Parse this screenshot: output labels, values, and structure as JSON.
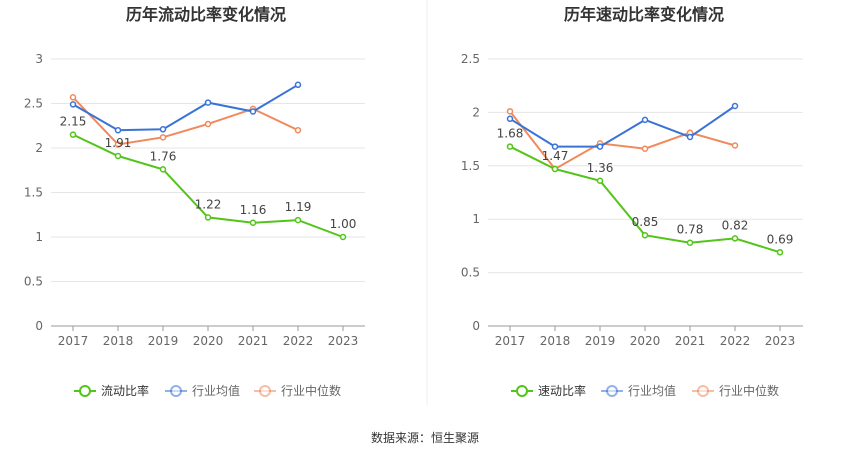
{
  "source_label": "数据来源：恒生聚源",
  "chart_data": [
    {
      "type": "line",
      "title": "历年流动比率变化情况",
      "categories": [
        "2017",
        "2018",
        "2019",
        "2020",
        "2021",
        "2022",
        "2023"
      ],
      "ylim": [
        0,
        3
      ],
      "yticks": [
        "0",
        "0.5",
        "1",
        "1.5",
        "2",
        "2.5",
        "3"
      ],
      "grid": true,
      "legend": "bottom",
      "series": [
        {
          "name": "流动比率",
          "color": "#52c41a",
          "labeled": true,
          "values": [
            2.15,
            1.91,
            1.76,
            1.22,
            1.16,
            1.19,
            1.0
          ],
          "labels": [
            "2.15",
            "1.91",
            "1.76",
            "1.22",
            "1.16",
            "1.19",
            "1.00"
          ]
        },
        {
          "name": "行业均值",
          "color": "#3a73d6",
          "labeled": false,
          "values": [
            2.49,
            2.2,
            2.21,
            2.51,
            2.41,
            2.71,
            null
          ]
        },
        {
          "name": "行业中位数",
          "color": "#f08a5d",
          "labeled": false,
          "values": [
            2.57,
            2.04,
            2.12,
            2.27,
            2.44,
            2.2,
            null
          ]
        }
      ]
    },
    {
      "type": "line",
      "title": "历年速动比率变化情况",
      "categories": [
        "2017",
        "2018",
        "2019",
        "2020",
        "2021",
        "2022",
        "2023"
      ],
      "ylim": [
        0,
        2.5
      ],
      "yticks": [
        "0",
        "0.5",
        "1",
        "1.5",
        "2",
        "2.5"
      ],
      "grid": true,
      "legend": "bottom",
      "series": [
        {
          "name": "速动比率",
          "color": "#52c41a",
          "labeled": true,
          "values": [
            1.68,
            1.47,
            1.36,
            0.85,
            0.78,
            0.82,
            0.69
          ],
          "labels": [
            "1.68",
            "1.47",
            "1.36",
            "0.85",
            "0.78",
            "0.82",
            "0.69"
          ]
        },
        {
          "name": "行业均值",
          "color": "#3a73d6",
          "labeled": false,
          "values": [
            1.94,
            1.68,
            1.68,
            1.93,
            1.77,
            2.06,
            null
          ]
        },
        {
          "name": "行业中位数",
          "color": "#f08a5d",
          "labeled": false,
          "values": [
            2.01,
            1.47,
            1.71,
            1.66,
            1.81,
            1.69,
            null
          ]
        }
      ]
    }
  ]
}
